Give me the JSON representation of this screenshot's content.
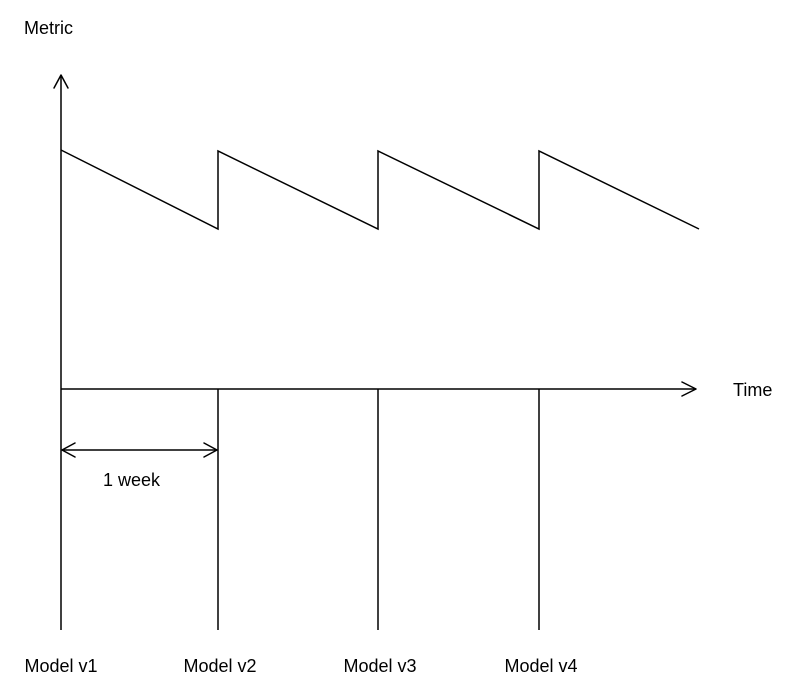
{
  "y_axis": {
    "label": "Metric"
  },
  "x_axis": {
    "label": "Time"
  },
  "interval": {
    "label": "1 week"
  },
  "markers": [
    {
      "label": "Model v1"
    },
    {
      "label": "Model v2"
    },
    {
      "label": "Model v3"
    },
    {
      "label": "Model v4"
    }
  ]
}
